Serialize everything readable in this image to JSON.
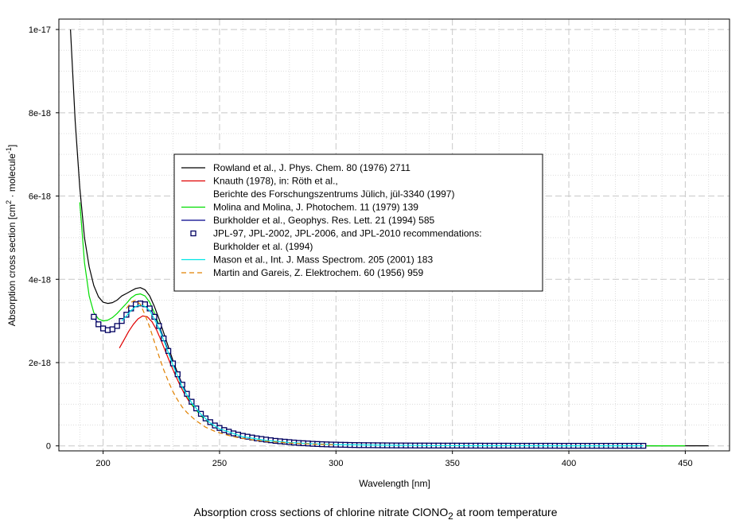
{
  "caption": {
    "text": "Absorption cross sections of chlorine nitrate ClONO",
    "subscript": "2",
    "suffix": " at room temperature"
  },
  "chart_data": {
    "type": "line",
    "xlabel": "Wavelength [nm]",
    "ylabel": "Absorption cross section [cm",
    "ylabel_sup1": "2",
    "ylabel_mid": " · molecule",
    "ylabel_sup2": "-1",
    "ylabel_end": "]",
    "xlim": [
      181,
      469
    ],
    "ylim": [
      -1.2e-19,
      1.025e-17
    ],
    "x_ticks": [
      200,
      250,
      300,
      350,
      400,
      450
    ],
    "x_tick_labels": [
      "200",
      "250",
      "300",
      "350",
      "400",
      "450"
    ],
    "y_ticks": [
      0,
      2e-18,
      4e-18,
      6e-18,
      8e-18,
      1e-17
    ],
    "y_tick_labels": [
      "0",
      "2e-18",
      "4e-18",
      "6e-18",
      "8e-18",
      "1e-17"
    ],
    "grid": true,
    "legend_position": "center",
    "series": [
      {
        "name": "Rowland et al., J. Phys. Chem. 80 (1976) 2711",
        "color": "#000000",
        "style": "solid",
        "x": [
          186,
          188,
          190,
          192,
          194,
          196,
          198,
          200,
          202,
          204,
          206,
          208,
          210,
          212,
          214,
          216,
          218,
          220,
          222,
          224,
          226,
          228,
          230,
          232,
          234,
          236,
          238,
          240,
          245,
          250,
          255,
          260,
          270,
          280,
          290,
          300,
          320,
          340,
          360,
          380,
          400,
          420,
          440,
          460
        ],
        "y": [
          1e-17,
          7.8e-18,
          6.2e-18,
          5e-18,
          4.3e-18,
          3.85e-18,
          3.58e-18,
          3.45e-18,
          3.42e-18,
          3.44e-18,
          3.5e-18,
          3.6e-18,
          3.66e-18,
          3.72e-18,
          3.78e-18,
          3.8e-18,
          3.75e-18,
          3.6e-18,
          3.35e-18,
          3.05e-18,
          2.72e-18,
          2.38e-18,
          2.05e-18,
          1.75e-18,
          1.48e-18,
          1.25e-18,
          1.06e-18,
          9e-19,
          6e-19,
          4.2e-19,
          3.1e-19,
          2.3e-19,
          1.4e-19,
          9e-20,
          6e-20,
          4e-20,
          2.5e-20,
          1.5e-20,
          1e-20,
          7e-21,
          5e-21,
          4e-21,
          3e-21,
          2e-21
        ]
      },
      {
        "name": " Knauth (1978), in: Röth et al.,",
        "name_line2": "Berichte des Forschungszentrums Jülich, jül-3340 (1997)",
        "color": "#e00000",
        "style": "solid",
        "x": [
          207,
          209,
          211,
          213,
          215,
          217,
          219,
          221,
          223,
          225,
          227,
          229,
          231,
          233,
          235,
          237,
          240
        ],
        "y": [
          2.35e-18,
          2.55e-18,
          2.75e-18,
          2.92e-18,
          3.05e-18,
          3.12e-18,
          3.1e-18,
          2.98e-18,
          2.78e-18,
          2.52e-18,
          2.24e-18,
          1.96e-18,
          1.7e-18,
          1.46e-18,
          1.24e-18,
          1.06e-18,
          8.5e-19
        ]
      },
      {
        "name": "Molina and Molina, J. Photochem. 11 (1979) 139",
        "color": "#00dd00",
        "style": "solid",
        "x": [
          190,
          192,
          194,
          196,
          198,
          200,
          202,
          204,
          206,
          208,
          210,
          212,
          214,
          216,
          218,
          220,
          222,
          224,
          226,
          228,
          230,
          234,
          238,
          242,
          246,
          250,
          260,
          270,
          280,
          300,
          320,
          340,
          360,
          380,
          400,
          420,
          440,
          450
        ],
        "y": [
          5.85e-18,
          4.4e-18,
          3.6e-18,
          3.2e-18,
          3.05e-18,
          3e-18,
          3.02e-18,
          3.08e-18,
          3.18e-18,
          3.3e-18,
          3.42e-18,
          3.55e-18,
          3.63e-18,
          3.65e-18,
          3.6e-18,
          3.45e-18,
          3.2e-18,
          2.9e-18,
          2.58e-18,
          2.26e-18,
          1.95e-18,
          1.42e-18,
          1e-18,
          7.2e-19,
          5.2e-19,
          3.8e-19,
          2e-19,
          1.2e-19,
          8e-20,
          4e-20,
          2e-20,
          1.2e-20,
          8e-21,
          6e-21,
          4e-21,
          3e-21,
          2e-21,
          2e-21
        ]
      },
      {
        "name": "Burkholder et al., Geophys. Res. Lett. 21 (1994) 585",
        "color": "#00008b",
        "style": "solid",
        "x": [
          196,
          198,
          200,
          202,
          204,
          206,
          208,
          210,
          212,
          214,
          216,
          218,
          220,
          222,
          224,
          226,
          228,
          230,
          232,
          234,
          236,
          238,
          240,
          244,
          248,
          252,
          256,
          260,
          270,
          280,
          290,
          300,
          320,
          340,
          360,
          380,
          400,
          420,
          432
        ],
        "y": [
          3.1e-18,
          2.92e-18,
          2.82e-18,
          2.78e-18,
          2.8e-18,
          2.88e-18,
          3e-18,
          3.15e-18,
          3.3e-18,
          3.4e-18,
          3.45e-18,
          3.42e-18,
          3.32e-18,
          3.12e-18,
          2.88e-18,
          2.58e-18,
          2.28e-18,
          1.98e-18,
          1.72e-18,
          1.47e-18,
          1.25e-18,
          1.06e-18,
          9e-19,
          6.6e-19,
          4.9e-19,
          3.8e-19,
          3e-19,
          2.4e-19,
          1.5e-19,
          9e-20,
          5e-20,
          3e-20,
          1.5e-20,
          8e-21,
          5e-21,
          4e-21,
          3e-21,
          2e-21,
          2e-21
        ]
      },
      {
        "name": "JPL-97, JPL-2002, JPL-2006, and JPL-2010 recommendations:",
        "name_line2": "Burkholder et al. (1994)",
        "color": "#000060",
        "style": "markers",
        "marker": "square",
        "x": [
          196,
          198,
          200,
          202,
          204,
          206,
          208,
          210,
          212,
          214,
          216,
          218,
          220,
          222,
          224,
          226,
          228,
          230,
          232,
          234,
          236,
          238,
          240,
          242,
          244,
          246,
          248,
          250,
          252,
          254,
          256,
          258,
          260,
          262,
          264,
          266,
          268,
          270,
          272,
          274,
          276,
          278,
          280,
          282,
          284,
          286,
          288,
          290,
          292,
          294,
          296,
          298,
          300,
          302,
          304,
          306,
          308,
          310,
          312,
          314,
          316,
          318,
          320,
          322,
          324,
          326,
          328,
          330,
          332,
          334,
          336,
          338,
          340,
          342,
          344,
          346,
          348,
          350,
          352,
          354,
          356,
          358,
          360,
          362,
          364,
          366,
          368,
          370,
          372,
          374,
          376,
          378,
          380,
          382,
          384,
          386,
          388,
          390,
          392,
          394,
          396,
          398,
          400,
          402,
          404,
          406,
          408,
          410,
          412,
          414,
          416,
          418,
          420,
          422,
          424,
          426,
          428,
          430,
          432
        ],
        "y": [
          3.1e-18,
          2.92e-18,
          2.82e-18,
          2.78e-18,
          2.8e-18,
          2.88e-18,
          3e-18,
          3.15e-18,
          3.3e-18,
          3.4e-18,
          3.42e-18,
          3.4e-18,
          3.3e-18,
          3.1e-18,
          2.88e-18,
          2.58e-18,
          2.28e-18,
          1.98e-18,
          1.72e-18,
          1.47e-18,
          1.25e-18,
          1.06e-18,
          9e-19,
          7.7e-19,
          6.6e-19,
          5.7e-19,
          4.9e-19,
          4.3e-19,
          3.8e-19,
          3.4e-19,
          3e-19,
          2.7e-19,
          2.4e-19,
          2.2e-19,
          2e-19,
          1.8e-19,
          1.65e-19,
          1.5e-19,
          1.35e-19,
          1.2e-19,
          1.1e-19,
          1e-19,
          9e-20,
          8e-20,
          7e-20,
          6.4e-20,
          5.8e-20,
          5e-20,
          4.5e-20,
          4e-20,
          3.6e-20,
          3.2e-20,
          3e-20,
          2.7e-20,
          2.5e-20,
          2.2e-20,
          2e-20,
          1.8e-20,
          1.7e-20,
          1.6e-20,
          1.5e-20,
          1.4e-20,
          1.3e-20,
          1.2e-20,
          1.1e-20,
          1e-20,
          1e-20,
          9e-21,
          9e-21,
          8e-21,
          8e-21,
          8e-21,
          7e-21,
          7e-21,
          7e-21,
          6e-21,
          6e-21,
          6e-21,
          6e-21,
          5e-21,
          5e-21,
          5e-21,
          5e-21,
          5e-21,
          4e-21,
          4e-21,
          4e-21,
          4e-21,
          4e-21,
          4e-21,
          3e-21,
          3e-21,
          3e-21,
          3e-21,
          3e-21,
          3e-21,
          3e-21,
          3e-21,
          3e-21,
          3e-21,
          2e-21,
          2e-21,
          2e-21,
          2e-21,
          2e-21,
          2e-21,
          2e-21,
          2e-21,
          2e-21,
          2e-21,
          2e-21,
          2e-21,
          2e-21,
          2e-21,
          2e-21,
          2e-21,
          2e-21,
          2e-21,
          2e-21
        ]
      },
      {
        "name": "Mason et al., Int. J. Mass Spectrom. 205 (2001) 183",
        "color": "#00e5e5",
        "style": "solid",
        "x": [
          208,
          210,
          212,
          214,
          216,
          218,
          220,
          222,
          224,
          226,
          228,
          230,
          234,
          238,
          242,
          246,
          250,
          260,
          270,
          280,
          290,
          300,
          320,
          340,
          360,
          380,
          400,
          420,
          432
        ],
        "y": [
          3e-18,
          3.12e-18,
          3.25e-18,
          3.35e-18,
          3.38e-18,
          3.35e-18,
          3.25e-18,
          3.05e-18,
          2.82e-18,
          2.54e-18,
          2.24e-18,
          1.94e-18,
          1.42e-18,
          1.04e-18,
          7.6e-19,
          5.5e-19,
          4.1e-19,
          2.2e-19,
          1.3e-19,
          8e-20,
          5e-20,
          3e-20,
          1.5e-20,
          8e-21,
          5e-21,
          4e-21,
          3e-21,
          2e-21,
          2e-21
        ]
      },
      {
        "name": "Martin and Gareis, Z. Elektrochem. 60 (1956) 959",
        "color": "#e08000",
        "style": "dashed",
        "x": [
          210,
          212,
          214,
          216,
          218,
          220,
          222,
          224,
          226,
          228,
          230,
          232,
          234,
          236,
          238,
          240,
          244,
          248,
          252,
          256,
          260,
          265,
          270,
          275,
          280,
          290,
          300
        ],
        "y": [
          3.3e-18,
          3.45e-18,
          3.5e-18,
          3.4e-18,
          3.15e-18,
          2.85e-18,
          2.5e-18,
          2.15e-18,
          1.83e-18,
          1.55e-18,
          1.3e-18,
          1.1e-18,
          9.3e-19,
          8e-19,
          7e-19,
          6e-19,
          4.5e-19,
          3.5e-19,
          2.8e-19,
          2.2e-19,
          1.8e-19,
          1.4e-19,
          1.1e-19,
          9e-20,
          7e-20,
          4e-20,
          2.5e-20
        ]
      }
    ]
  }
}
